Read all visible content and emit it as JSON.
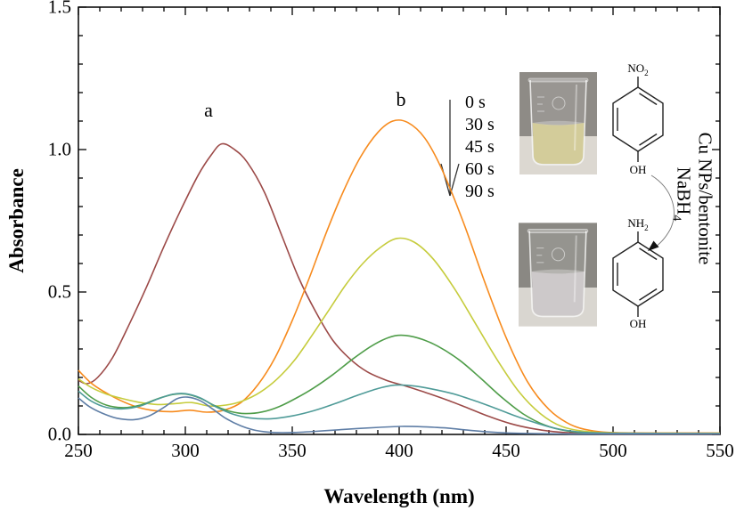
{
  "axes": {
    "x": {
      "title": "Wavelength (nm)",
      "min": 250,
      "max": 550,
      "major_step": 50,
      "minor_step": 10,
      "tick_labels": [
        "250",
        "300",
        "350",
        "400",
        "450",
        "500",
        "550"
      ]
    },
    "y": {
      "title": "Absorbance",
      "min": 0.0,
      "max": 1.5,
      "major_step": 0.5,
      "minor_step": 0.1,
      "tick_labels": [
        "0.0",
        "0.5",
        "1.0",
        "1.5"
      ]
    }
  },
  "annotations": {
    "peak_a_label": "a",
    "peak_b_label": "b",
    "time_labels": [
      "0 s",
      "30 s",
      "45 s",
      "60 s",
      "90 s"
    ]
  },
  "reaction_scheme": {
    "reactant_top_group": "NO",
    "reactant_top_sub": "2",
    "reactant_bottom_group": "OH",
    "product_top_group": "NH",
    "product_top_sub": "2",
    "product_bottom_group": "OH",
    "catalyst_label": "Cu NPs/bentonite",
    "reductant_label": "NaBH",
    "reductant_sub": "4"
  },
  "insets": {
    "initial_beaker": {
      "liquid_color": "#cfc78f",
      "background_color": "#8e8b86",
      "table_color": "#dcd8d1"
    },
    "final_beaker": {
      "liquid_color": "#c8c3c5",
      "background_color": "#8a8883",
      "table_color": "#d9d6d0"
    }
  },
  "chart_data": {
    "type": "line",
    "title": "",
    "xlabel": "Wavelength (nm)",
    "ylabel": "Absorbance",
    "xlim": [
      250,
      550
    ],
    "ylim": [
      0.0,
      1.5
    ],
    "x_ticks": [
      250,
      300,
      350,
      400,
      450,
      500,
      550
    ],
    "y_ticks": [
      0.0,
      0.5,
      1.0,
      1.5
    ],
    "grid": false,
    "legend_position": "none",
    "series": [
      {
        "name": "a",
        "color": "#9c4a48",
        "points": [
          [
            250,
            0.19
          ],
          [
            254,
            0.178
          ],
          [
            259,
            0.2
          ],
          [
            266,
            0.27
          ],
          [
            274,
            0.39
          ],
          [
            282,
            0.52
          ],
          [
            290,
            0.66
          ],
          [
            298,
            0.79
          ],
          [
            306,
            0.91
          ],
          [
            312,
            0.98
          ],
          [
            317,
            1.02
          ],
          [
            323,
            1.0
          ],
          [
            329,
            0.955
          ],
          [
            337,
            0.85
          ],
          [
            345,
            0.7
          ],
          [
            353,
            0.55
          ],
          [
            361,
            0.43
          ],
          [
            369,
            0.33
          ],
          [
            377,
            0.265
          ],
          [
            385,
            0.22
          ],
          [
            394,
            0.19
          ],
          [
            403,
            0.17
          ],
          [
            412,
            0.148
          ],
          [
            422,
            0.122
          ],
          [
            432,
            0.093
          ],
          [
            442,
            0.063
          ],
          [
            452,
            0.038
          ],
          [
            462,
            0.021
          ],
          [
            472,
            0.01
          ],
          [
            484,
            0.004
          ],
          [
            500,
            0.002
          ],
          [
            525,
            0.002
          ],
          [
            550,
            0.002
          ]
        ]
      },
      {
        "name": "0 s",
        "color": "#f78b1e",
        "points": [
          [
            250,
            0.225
          ],
          [
            256,
            0.18
          ],
          [
            262,
            0.15
          ],
          [
            270,
            0.118
          ],
          [
            278,
            0.095
          ],
          [
            286,
            0.083
          ],
          [
            294,
            0.08
          ],
          [
            302,
            0.085
          ],
          [
            310,
            0.078
          ],
          [
            318,
            0.085
          ],
          [
            326,
            0.112
          ],
          [
            334,
            0.175
          ],
          [
            342,
            0.27
          ],
          [
            350,
            0.4
          ],
          [
            358,
            0.55
          ],
          [
            366,
            0.71
          ],
          [
            374,
            0.855
          ],
          [
            382,
            0.975
          ],
          [
            390,
            1.06
          ],
          [
            397,
            1.1
          ],
          [
            404,
            1.095
          ],
          [
            412,
            1.04
          ],
          [
            420,
            0.93
          ],
          [
            430,
            0.745
          ],
          [
            440,
            0.535
          ],
          [
            450,
            0.34
          ],
          [
            460,
            0.185
          ],
          [
            470,
            0.088
          ],
          [
            480,
            0.035
          ],
          [
            490,
            0.013
          ],
          [
            502,
            0.006
          ],
          [
            525,
            0.005
          ],
          [
            550,
            0.005
          ]
        ]
      },
      {
        "name": "30 s",
        "color": "#c6cc3d",
        "points": [
          [
            250,
            0.195
          ],
          [
            256,
            0.165
          ],
          [
            263,
            0.142
          ],
          [
            271,
            0.125
          ],
          [
            279,
            0.112
          ],
          [
            287,
            0.105
          ],
          [
            295,
            0.108
          ],
          [
            303,
            0.112
          ],
          [
            311,
            0.1
          ],
          [
            319,
            0.103
          ],
          [
            327,
            0.118
          ],
          [
            335,
            0.148
          ],
          [
            343,
            0.195
          ],
          [
            351,
            0.26
          ],
          [
            359,
            0.345
          ],
          [
            367,
            0.435
          ],
          [
            375,
            0.525
          ],
          [
            383,
            0.6
          ],
          [
            391,
            0.655
          ],
          [
            399,
            0.688
          ],
          [
            407,
            0.675
          ],
          [
            416,
            0.615
          ],
          [
            426,
            0.51
          ],
          [
            436,
            0.385
          ],
          [
            446,
            0.26
          ],
          [
            456,
            0.15
          ],
          [
            466,
            0.073
          ],
          [
            476,
            0.028
          ],
          [
            488,
            0.01
          ],
          [
            502,
            0.005
          ],
          [
            525,
            0.004
          ],
          [
            550,
            0.004
          ]
        ]
      },
      {
        "name": "45 s",
        "color": "#4f9d49",
        "points": [
          [
            250,
            0.17
          ],
          [
            256,
            0.13
          ],
          [
            263,
            0.103
          ],
          [
            271,
            0.094
          ],
          [
            279,
            0.103
          ],
          [
            287,
            0.125
          ],
          [
            294,
            0.14
          ],
          [
            300,
            0.142
          ],
          [
            307,
            0.127
          ],
          [
            314,
            0.1
          ],
          [
            321,
            0.081
          ],
          [
            328,
            0.073
          ],
          [
            336,
            0.079
          ],
          [
            344,
            0.098
          ],
          [
            352,
            0.128
          ],
          [
            360,
            0.163
          ],
          [
            369,
            0.21
          ],
          [
            378,
            0.263
          ],
          [
            387,
            0.31
          ],
          [
            395,
            0.34
          ],
          [
            401,
            0.348
          ],
          [
            409,
            0.338
          ],
          [
            418,
            0.31
          ],
          [
            428,
            0.262
          ],
          [
            438,
            0.198
          ],
          [
            448,
            0.13
          ],
          [
            458,
            0.072
          ],
          [
            468,
            0.033
          ],
          [
            478,
            0.013
          ],
          [
            490,
            0.005
          ],
          [
            510,
            0.003
          ],
          [
            550,
            0.003
          ]
        ]
      },
      {
        "name": "60 s",
        "color": "#4f9b98",
        "points": [
          [
            250,
            0.152
          ],
          [
            256,
            0.117
          ],
          [
            263,
            0.095
          ],
          [
            271,
            0.09
          ],
          [
            279,
            0.1
          ],
          [
            287,
            0.124
          ],
          [
            294,
            0.141
          ],
          [
            300,
            0.143
          ],
          [
            307,
            0.128
          ],
          [
            314,
            0.098
          ],
          [
            322,
            0.072
          ],
          [
            330,
            0.058
          ],
          [
            340,
            0.055
          ],
          [
            350,
            0.065
          ],
          [
            360,
            0.083
          ],
          [
            370,
            0.108
          ],
          [
            380,
            0.136
          ],
          [
            390,
            0.161
          ],
          [
            398,
            0.173
          ],
          [
            406,
            0.171
          ],
          [
            415,
            0.16
          ],
          [
            425,
            0.143
          ],
          [
            435,
            0.119
          ],
          [
            445,
            0.092
          ],
          [
            455,
            0.063
          ],
          [
            465,
            0.038
          ],
          [
            475,
            0.018
          ],
          [
            487,
            0.007
          ],
          [
            505,
            0.004
          ],
          [
            550,
            0.003
          ]
        ]
      },
      {
        "name": "90 s",
        "color": "#5f7ea6",
        "points": [
          [
            250,
            0.128
          ],
          [
            255,
            0.098
          ],
          [
            261,
            0.075
          ],
          [
            268,
            0.057
          ],
          [
            276,
            0.052
          ],
          [
            283,
            0.065
          ],
          [
            290,
            0.095
          ],
          [
            296,
            0.125
          ],
          [
            301,
            0.131
          ],
          [
            307,
            0.118
          ],
          [
            313,
            0.088
          ],
          [
            319,
            0.056
          ],
          [
            326,
            0.03
          ],
          [
            333,
            0.014
          ],
          [
            341,
            0.007
          ],
          [
            351,
            0.007
          ],
          [
            361,
            0.011
          ],
          [
            371,
            0.016
          ],
          [
            381,
            0.021
          ],
          [
            391,
            0.025
          ],
          [
            401,
            0.028
          ],
          [
            411,
            0.027
          ],
          [
            421,
            0.023
          ],
          [
            431,
            0.016
          ],
          [
            441,
            0.009
          ],
          [
            451,
            0.005
          ],
          [
            463,
            0.003
          ],
          [
            480,
            0.002
          ],
          [
            510,
            0.002
          ],
          [
            550,
            0.002
          ]
        ]
      }
    ]
  }
}
